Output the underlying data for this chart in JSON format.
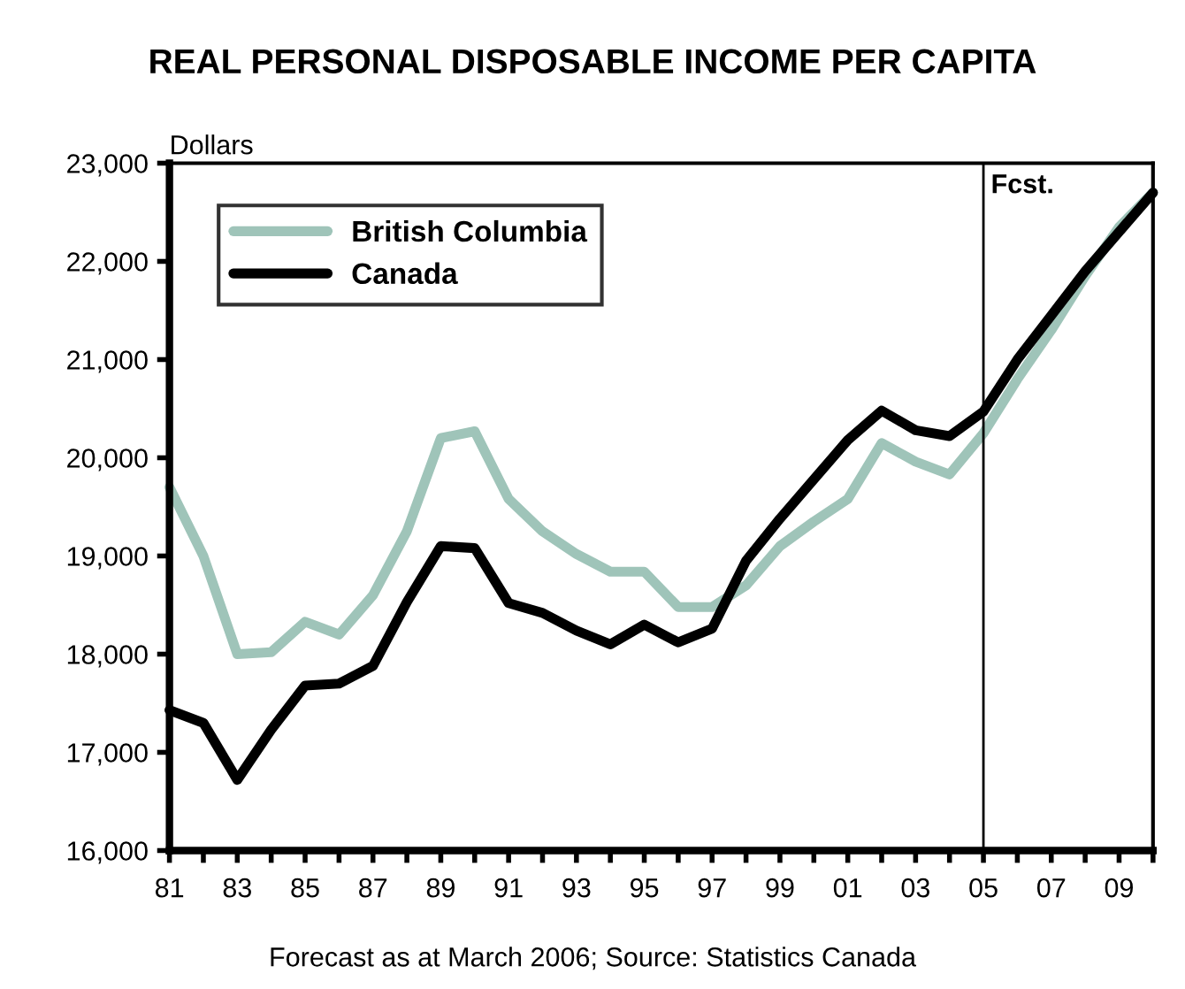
{
  "chart_data": {
    "type": "line",
    "title": "REAL PERSONAL DISPOSABLE INCOME PER CAPITA",
    "ylabel": "Dollars",
    "x": [
      1981,
      1982,
      1983,
      1984,
      1985,
      1986,
      1987,
      1988,
      1989,
      1990,
      1991,
      1992,
      1993,
      1994,
      1995,
      1996,
      1997,
      1998,
      1999,
      2000,
      2001,
      2002,
      2003,
      2004,
      2005,
      2006,
      2007,
      2008,
      2009,
      2010
    ],
    "series": [
      {
        "name": "British Columbia",
        "color": "#9fc4b9",
        "values": [
          19700,
          19000,
          18000,
          18020,
          18330,
          18200,
          18600,
          19250,
          20200,
          20270,
          19580,
          19250,
          19020,
          18840,
          18840,
          18480,
          18480,
          18700,
          19100,
          19350,
          19580,
          20150,
          19960,
          19830,
          20250,
          20800,
          21300,
          21850,
          22350,
          22700
        ]
      },
      {
        "name": "Canada",
        "color": "#000000",
        "values": [
          17430,
          17300,
          16720,
          17230,
          17680,
          17700,
          17880,
          18530,
          19100,
          19080,
          18520,
          18420,
          18240,
          18100,
          18300,
          18120,
          18260,
          18950,
          19380,
          19780,
          20180,
          20480,
          20280,
          20220,
          20470,
          21000,
          21450,
          21900,
          22300,
          22700
        ]
      }
    ],
    "xlim": [
      1981,
      2010
    ],
    "xticks": [
      {
        "value": 1981,
        "label": "81"
      },
      {
        "value": 1982,
        "label": null
      },
      {
        "value": 1983,
        "label": "83"
      },
      {
        "value": 1984,
        "label": null
      },
      {
        "value": 1985,
        "label": "85"
      },
      {
        "value": 1986,
        "label": null
      },
      {
        "value": 1987,
        "label": "87"
      },
      {
        "value": 1988,
        "label": null
      },
      {
        "value": 1989,
        "label": "89"
      },
      {
        "value": 1990,
        "label": null
      },
      {
        "value": 1991,
        "label": "91"
      },
      {
        "value": 1992,
        "label": null
      },
      {
        "value": 1993,
        "label": "93"
      },
      {
        "value": 1994,
        "label": null
      },
      {
        "value": 1995,
        "label": "95"
      },
      {
        "value": 1996,
        "label": null
      },
      {
        "value": 1997,
        "label": "97"
      },
      {
        "value": 1998,
        "label": null
      },
      {
        "value": 1999,
        "label": "99"
      },
      {
        "value": 2000,
        "label": null
      },
      {
        "value": 2001,
        "label": "01"
      },
      {
        "value": 2002,
        "label": null
      },
      {
        "value": 2003,
        "label": "03"
      },
      {
        "value": 2004,
        "label": null
      },
      {
        "value": 2005,
        "label": "05"
      },
      {
        "value": 2006,
        "label": null
      },
      {
        "value": 2007,
        "label": "07"
      },
      {
        "value": 2008,
        "label": null
      },
      {
        "value": 2009,
        "label": "09"
      },
      {
        "value": 2010,
        "label": null
      }
    ],
    "ylim": [
      16000,
      23000
    ],
    "yticks": [
      {
        "value": 16000,
        "label": "16,000"
      },
      {
        "value": 17000,
        "label": "17,000"
      },
      {
        "value": 18000,
        "label": "18,000"
      },
      {
        "value": 19000,
        "label": "19,000"
      },
      {
        "value": 20000,
        "label": "20,000"
      },
      {
        "value": 21000,
        "label": "21,000"
      },
      {
        "value": 22000,
        "label": "22,000"
      },
      {
        "value": 23000,
        "label": "23,000"
      }
    ],
    "ref_lines": [
      {
        "axis": "x",
        "value": 2005,
        "label": "Fcst.",
        "color": "#000000"
      }
    ],
    "annotations": [
      "Forecast as at March 2006; Source: Statistics Canada"
    ],
    "legend": "top left",
    "grid": false,
    "line_style": "solid",
    "marker": "none"
  }
}
